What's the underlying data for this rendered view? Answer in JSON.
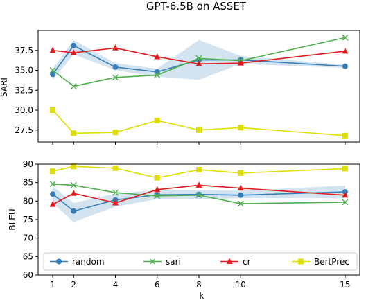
{
  "chart_data": {
    "type": "line",
    "title": "GPT-6.5B on ASSET",
    "xlabel": "k",
    "x": [
      1,
      2,
      4,
      6,
      8,
      10,
      15
    ],
    "xticks": [
      "1",
      "2",
      "4",
      "6",
      "8",
      "10",
      "15"
    ],
    "legend": {
      "placement": "lower center (bottom panel)",
      "columns": 4
    },
    "colors": {
      "random": "#377eb8",
      "sari": "#4daf4a",
      "cr": "#e41a1c",
      "BertPrec": "#dede00",
      "band": "#377eb8"
    },
    "panels": [
      {
        "ylabel": "SARI",
        "ylim": [
          26.0,
          40.0
        ],
        "yticks": [
          "27.5",
          "30.0",
          "32.5",
          "35.0",
          "37.5"
        ],
        "series": [
          {
            "name": "random",
            "marker": "circle",
            "values": [
              34.5,
              38.1,
              35.4,
              34.8,
              36.3,
              36.3,
              35.5
            ],
            "band_low": [
              33.8,
              37.0,
              35.0,
              34.2,
              33.8,
              35.8,
              35.3
            ],
            "band_high": [
              35.2,
              38.8,
              35.9,
              35.2,
              38.8,
              36.8,
              35.7
            ]
          },
          {
            "name": "sari",
            "marker": "x",
            "values": [
              35.0,
              33.0,
              34.1,
              34.4,
              36.5,
              36.2,
              39.1
            ]
          },
          {
            "name": "cr",
            "marker": "triangle",
            "values": [
              37.5,
              37.2,
              37.8,
              36.7,
              35.8,
              35.9,
              37.4
            ]
          },
          {
            "name": "BertPrec",
            "marker": "square",
            "values": [
              30.0,
              27.1,
              27.2,
              28.7,
              27.5,
              27.8,
              26.8
            ]
          }
        ]
      },
      {
        "ylabel": "BLEU",
        "ylim": [
          60,
          90
        ],
        "yticks": [
          "60",
          "65",
          "70",
          "75",
          "80",
          "85",
          "90"
        ],
        "series": [
          {
            "name": "random",
            "marker": "circle",
            "values": [
              81.9,
              77.3,
              80.3,
              81.7,
              81.8,
              81.6,
              82.5
            ],
            "band_low": [
              79.5,
              74.3,
              78.5,
              80.5,
              80.5,
              80.8,
              80.8
            ],
            "band_high": [
              84.0,
              79.5,
              82.0,
              83.0,
              83.0,
              82.8,
              84.2
            ]
          },
          {
            "name": "sari",
            "marker": "x",
            "values": [
              84.6,
              84.3,
              82.3,
              81.4,
              81.6,
              79.3,
              79.7
            ]
          },
          {
            "name": "cr",
            "marker": "triangle",
            "values": [
              79.1,
              82.1,
              79.5,
              83.1,
              84.3,
              83.5,
              81.6
            ]
          },
          {
            "name": "BertPrec",
            "marker": "square",
            "values": [
              88.1,
              89.4,
              88.9,
              86.3,
              88.5,
              87.6,
              88.8
            ]
          }
        ]
      }
    ]
  }
}
